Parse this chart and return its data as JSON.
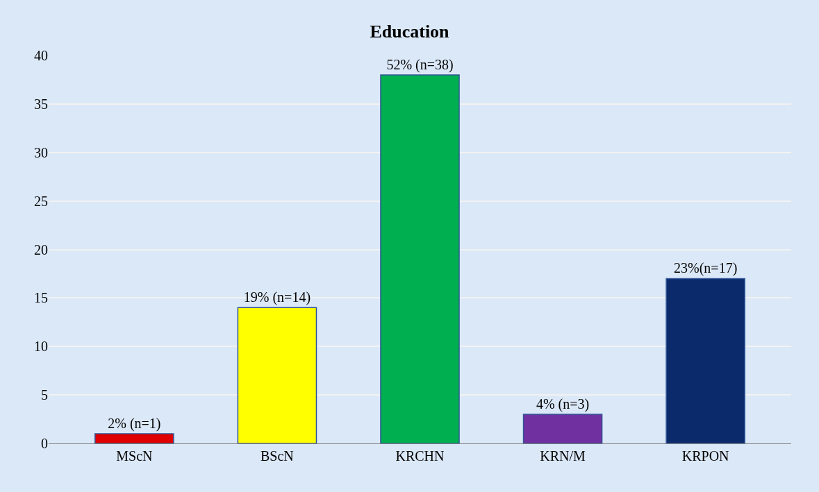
{
  "chart_data": {
    "type": "bar",
    "title": "Education",
    "categories": [
      "MScN",
      "BScN",
      "KRCHN",
      "KRN/M",
      "KRPON"
    ],
    "values": [
      1,
      14,
      38,
      3,
      17
    ],
    "colors": [
      "#e00000",
      "#ffff00",
      "#00b050",
      "#7030a0",
      "#0b2a6b"
    ],
    "value_labels": [
      "2% (n=1)",
      "19% (n=14)",
      "52% (n=38)",
      "4% (n=3)",
      "23%(n=17)"
    ],
    "ylim": [
      0,
      40
    ],
    "yticks": [
      0,
      5,
      10,
      15,
      20,
      25,
      30,
      35,
      40
    ],
    "grid": "y"
  }
}
